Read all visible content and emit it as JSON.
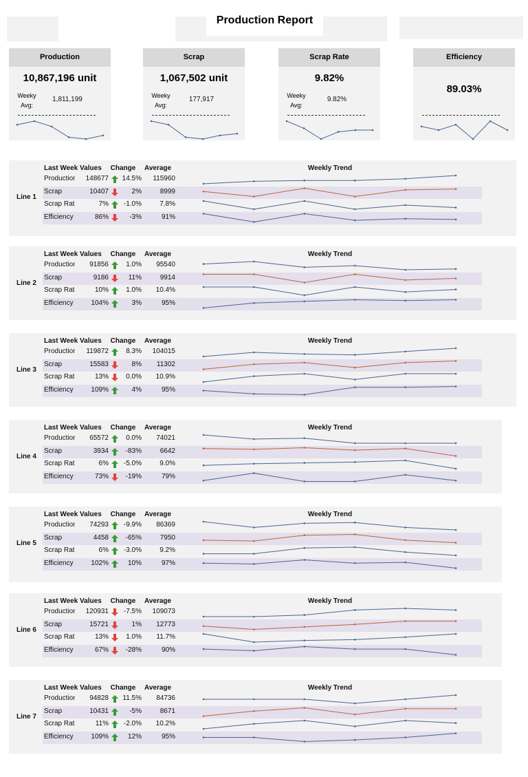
{
  "header": {
    "title": "Production Report"
  },
  "kpis": [
    {
      "title": "Production",
      "value": "10,867,196 unit",
      "avg_label": "Weeky Avg:",
      "avg": "1,811,199",
      "trend": [
        8,
        10,
        7,
        1,
        0,
        2
      ]
    },
    {
      "title": "Scrap",
      "value": "1,067,502 unit",
      "avg_label": "Weeky Avg:",
      "avg": "177,917",
      "trend": [
        10,
        8,
        1,
        0,
        2,
        3
      ]
    },
    {
      "title": "Scrap Rate",
      "value": "9.82%",
      "avg_label": "Weeky Avg:",
      "avg": "9.82%",
      "trend": [
        10,
        6,
        0,
        4,
        5,
        5
      ]
    },
    {
      "title": "Efficiency",
      "value": "89.03%",
      "trend": [
        7,
        5,
        8,
        0,
        10,
        5
      ]
    }
  ],
  "table_headers": {
    "last_week": "Last Week Values",
    "change": "Change",
    "average": "Average",
    "trend": "Weekly Trend"
  },
  "metrics": [
    "Production",
    "Scrap",
    "Scrap Rate",
    "Efficiency"
  ],
  "trend_colors": [
    "#4a6491",
    "#c0623d",
    "#4a6491",
    "#4a6491"
  ],
  "lines": [
    {
      "label": "Line 1",
      "rows": [
        {
          "last_week": "148677",
          "direction": "up",
          "change": "14.5%",
          "average": "115960",
          "trend": [
            0,
            3,
            4,
            4,
            6,
            10
          ]
        },
        {
          "last_week": "10407",
          "direction": "down",
          "change": "2%",
          "average": "8999",
          "trend": [
            6,
            0,
            10,
            0,
            8,
            9
          ]
        },
        {
          "last_week": "7%",
          "direction": "up",
          "change": "-1.0%",
          "average": "7.8%",
          "trend": [
            10,
            0,
            10,
            0,
            5,
            2
          ]
        },
        {
          "last_week": "86%",
          "direction": "down",
          "change": "-3%",
          "average": "91%",
          "trend": [
            10,
            0,
            10,
            2,
            4,
            3
          ]
        }
      ]
    },
    {
      "label": "Line 2",
      "rows": [
        {
          "last_week": "91856",
          "direction": "up",
          "change": "1.0%",
          "average": "95540",
          "trend": [
            7,
            10,
            3,
            5,
            0,
            1
          ]
        },
        {
          "last_week": "9186",
          "direction": "down",
          "change": "11%",
          "average": "9914",
          "trend": [
            10,
            10,
            0,
            10,
            3,
            5
          ]
        },
        {
          "last_week": "10%",
          "direction": "up",
          "change": "1.0%",
          "average": "10.4%",
          "trend": [
            10,
            10,
            0,
            10,
            4,
            7
          ]
        },
        {
          "last_week": "104%",
          "direction": "up",
          "change": "3%",
          "average": "95%",
          "trend": [
            0,
            6,
            8,
            10,
            9,
            10
          ]
        }
      ]
    },
    {
      "label": "Line 3",
      "rows": [
        {
          "last_week": "119872",
          "direction": "up",
          "change": "8.3%",
          "average": "104015",
          "trend": [
            0,
            5,
            3,
            2,
            6,
            10
          ]
        },
        {
          "last_week": "15583",
          "direction": "down",
          "change": "8%",
          "average": "11302",
          "trend": [
            0,
            6,
            8,
            2,
            8,
            10
          ]
        },
        {
          "last_week": "13%",
          "direction": "down",
          "change": "0.0%",
          "average": "10.9%",
          "trend": [
            0,
            7,
            10,
            3,
            10,
            10
          ]
        },
        {
          "last_week": "109%",
          "direction": "up",
          "change": "4%",
          "average": "95%",
          "trend": [
            5,
            1,
            0,
            9,
            9,
            10
          ]
        }
      ]
    },
    {
      "label": "Line 4",
      "rows": [
        {
          "last_week": "65572",
          "direction": "up",
          "change": "0.0%",
          "average": "74021",
          "trend": [
            10,
            5,
            6,
            0,
            0,
            0
          ]
        },
        {
          "last_week": "3934",
          "direction": "up",
          "change": "-83%",
          "average": "6642",
          "trend": [
            9,
            8,
            10,
            7,
            9,
            0
          ]
        },
        {
          "last_week": "6%",
          "direction": "up",
          "change": "-5.0%",
          "average": "9.0%",
          "trend": [
            4,
            6,
            7,
            8,
            10,
            0
          ]
        },
        {
          "last_week": "73%",
          "direction": "down",
          "change": "-19%",
          "average": "79%",
          "trend": [
            1,
            10,
            0,
            0,
            8,
            1
          ]
        }
      ]
    },
    {
      "label": "Line 5",
      "rows": [
        {
          "last_week": "74293",
          "direction": "up",
          "change": "-9.9%",
          "average": "86369",
          "trend": [
            10,
            3,
            8,
            9,
            3,
            0
          ]
        },
        {
          "last_week": "4458",
          "direction": "up",
          "change": "-65%",
          "average": "7950",
          "trend": [
            3,
            2,
            9,
            10,
            3,
            0
          ]
        },
        {
          "last_week": "6%",
          "direction": "up",
          "change": "-3.0%",
          "average": "9.2%",
          "trend": [
            2,
            2,
            9,
            10,
            4,
            0
          ]
        },
        {
          "last_week": "102%",
          "direction": "up",
          "change": "10%",
          "average": "97%",
          "trend": [
            6,
            5,
            10,
            6,
            7,
            0
          ]
        }
      ]
    },
    {
      "label": "Line 6",
      "rows": [
        {
          "last_week": "120931",
          "direction": "down",
          "change": "-7.5%",
          "average": "109073",
          "trend": [
            0,
            0,
            2,
            8,
            10,
            8
          ]
        },
        {
          "last_week": "15721",
          "direction": "down",
          "change": "1%",
          "average": "12773",
          "trend": [
            4,
            0,
            3,
            6,
            10,
            10
          ]
        },
        {
          "last_week": "13%",
          "direction": "down",
          "change": "1.0%",
          "average": "11.7%",
          "trend": [
            10,
            0,
            2,
            3,
            6,
            10
          ]
        },
        {
          "last_week": "67%",
          "direction": "down",
          "change": "-28%",
          "average": "90%",
          "trend": [
            7,
            5,
            10,
            7,
            7,
            0
          ]
        }
      ]
    },
    {
      "label": "Line 7",
      "rows": [
        {
          "last_week": "94828",
          "direction": "up",
          "change": "11.5%",
          "average": "84736",
          "trend": [
            5,
            5,
            5,
            0,
            5,
            10
          ]
        },
        {
          "last_week": "10431",
          "direction": "up",
          "change": "-5%",
          "average": "8671",
          "trend": [
            0,
            6,
            10,
            2,
            9,
            9
          ]
        },
        {
          "last_week": "11%",
          "direction": "up",
          "change": "-2.0%",
          "average": "10.2%",
          "trend": [
            0,
            6,
            10,
            3,
            10,
            7
          ]
        },
        {
          "last_week": "109%",
          "direction": "up",
          "change": "12%",
          "average": "95%",
          "trend": [
            5,
            5,
            0,
            2,
            5,
            10
          ]
        }
      ]
    }
  ]
}
